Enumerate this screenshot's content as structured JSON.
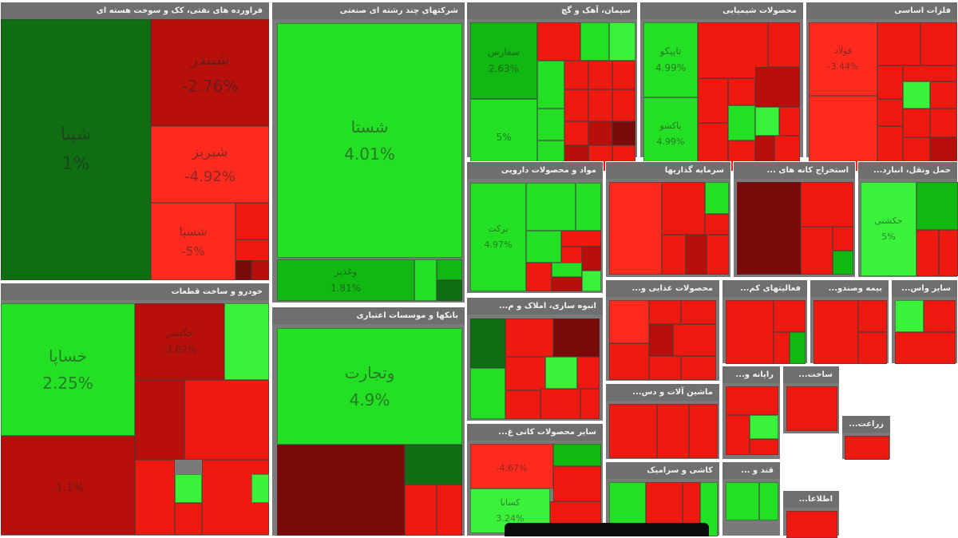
{
  "colors": {
    "bright_green": "#24e024",
    "green": "#12b812",
    "light_green": "#3bf23b",
    "dark_green": "#0f6e12",
    "red": "#ee1a10",
    "bright_red": "#ff2a1e",
    "dark_red": "#b80f0b",
    "maroon": "#7a0a08",
    "header": "#6f6f6f"
  },
  "chart_data": {
    "type": "heatmap",
    "title": "",
    "sectors": [
      {
        "name": "فراورده های نفتی، کک و سوخت هسته ای",
        "tiles": [
          {
            "symbol": "شپنا",
            "change": "1%"
          },
          {
            "symbol": "شبندر",
            "change": "-2.76%"
          },
          {
            "symbol": "شبریز",
            "change": "-4.92%"
          },
          {
            "symbol": "شسپا",
            "change": "-5%"
          }
        ]
      },
      {
        "name": "شرکتهای چند رشته ای صنعتی",
        "tiles": [
          {
            "symbol": "شستا",
            "change": "4.01%"
          },
          {
            "symbol": "وغدیر",
            "change": "1.81%"
          }
        ]
      },
      {
        "name": "سیمان، آهک و گچ",
        "tiles": [
          {
            "symbol": "سفارس",
            "change": "2.63%"
          },
          {
            "symbol": "",
            "change": "5%"
          }
        ]
      },
      {
        "name": "محصولات شیمیایی",
        "tiles": [
          {
            "symbol": "تاپیکو",
            "change": "4.99%"
          },
          {
            "symbol": "پاکشو",
            "change": "4.99%"
          }
        ]
      },
      {
        "name": "فلزات اساسی",
        "tiles": [
          {
            "symbol": "فولاد",
            "change": "-3.44%"
          }
        ]
      },
      {
        "name": "مواد و محصولات دارویی",
        "tiles": [
          {
            "symbol": "برکت",
            "change": "4.97%"
          }
        ]
      },
      {
        "name": "سرمایه گذاریها",
        "tiles": []
      },
      {
        "name": "استخراج کانه های ...",
        "tiles": []
      },
      {
        "name": "حمل ونقل، انبارد...",
        "tiles": [
          {
            "symbol": "حکشتی",
            "change": "5%"
          }
        ]
      },
      {
        "name": "خودرو و ساخت قطعات",
        "tiles": [
          {
            "symbol": "خساپا",
            "change": "2.25%"
          },
          {
            "symbol": "خگستر",
            "change": "-3.02%"
          },
          {
            "symbol": "",
            "change": "-1.1%"
          }
        ]
      },
      {
        "name": "بانکها و موسسات اعتباری",
        "tiles": [
          {
            "symbol": "وتجارت",
            "change": "4.9%"
          }
        ]
      },
      {
        "name": "انبوه سازی، املاک و م...",
        "tiles": []
      },
      {
        "name": "محصولات غذایی و...",
        "tiles": []
      },
      {
        "name": "فعالیتهای کم...",
        "tiles": []
      },
      {
        "name": "بیمه وصندو...",
        "tiles": []
      },
      {
        "name": "سایر واس...",
        "tiles": []
      },
      {
        "name": "ماشین آلات و دس...",
        "tiles": []
      },
      {
        "name": "رایانه و...",
        "tiles": []
      },
      {
        "name": "ساخت...",
        "tiles": []
      },
      {
        "name": "سایر محصولات کانی غ...",
        "tiles": [
          {
            "symbol": "",
            "change": "-4.67%"
          },
          {
            "symbol": "کسابا",
            "change": "3.24%"
          }
        ]
      },
      {
        "name": "کاشی و سرامیک",
        "tiles": []
      },
      {
        "name": "قند و ...",
        "tiles": []
      },
      {
        "name": "زراعت...",
        "tiles": []
      },
      {
        "name": "اطلاعا...",
        "tiles": []
      }
    ]
  }
}
